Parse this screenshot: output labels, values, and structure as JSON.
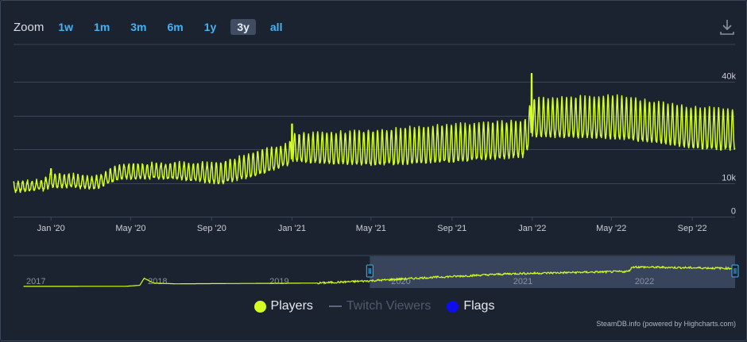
{
  "zoom": {
    "label": "Zoom",
    "buttons": [
      "1w",
      "1m",
      "3m",
      "6m",
      "1y",
      "3y",
      "all"
    ],
    "active": "3y"
  },
  "icons": {
    "download": "download-icon"
  },
  "colors": {
    "players": "#d3ff21",
    "twitch": "#5d6a7d",
    "flags": "#0d0df0",
    "background": "#1c2330",
    "grid": "#3a4556",
    "text": "#d9dde3",
    "navigator_mask": "#41506b"
  },
  "legend": [
    {
      "label": "Players",
      "kind": "dot",
      "color": "#d3ff21",
      "enabled": true
    },
    {
      "label": "Twitch Viewers",
      "kind": "line",
      "color": "#5d6a7d",
      "enabled": false
    },
    {
      "label": "Flags",
      "kind": "dot",
      "color": "#0d0df0",
      "enabled": true
    }
  ],
  "credits": "SteamDB.info (powered by Highcharts.com)",
  "chart_data": {
    "type": "line",
    "x_range": [
      "2019-11-05",
      "2022-11-05"
    ],
    "x_ticks": [
      {
        "date": "2020-01-01",
        "label": "Jan '20"
      },
      {
        "date": "2020-05-01",
        "label": "May '20"
      },
      {
        "date": "2020-09-01",
        "label": "Sep '20"
      },
      {
        "date": "2021-01-01",
        "label": "Jan '21"
      },
      {
        "date": "2021-05-01",
        "label": "May '21"
      },
      {
        "date": "2021-09-01",
        "label": "Sep '21"
      },
      {
        "date": "2022-01-01",
        "label": "Jan '22"
      },
      {
        "date": "2022-05-01",
        "label": "May '22"
      },
      {
        "date": "2022-09-01",
        "label": "Sep '22"
      }
    ],
    "y_axis": {
      "min": 0,
      "max": 40000,
      "ticks": [
        0,
        10000,
        20000,
        30000,
        40000
      ],
      "tick_labels": [
        "0",
        "10k",
        "",
        "",
        "40k"
      ],
      "position": "right"
    },
    "grid": true,
    "series": [
      {
        "name": "Players",
        "weekly_oscillation": true,
        "trend": [
          {
            "date": "2019-11-05",
            "low": 7500,
            "high": 10500
          },
          {
            "date": "2019-12-20",
            "low": 8000,
            "high": 11000
          },
          {
            "date": "2020-01-01",
            "low": 9000,
            "high": 13000
          },
          {
            "date": "2020-03-10",
            "low": 8500,
            "high": 12000
          },
          {
            "date": "2020-04-15",
            "low": 11500,
            "high": 15500
          },
          {
            "date": "2020-07-01",
            "low": 11500,
            "high": 16000
          },
          {
            "date": "2020-09-15",
            "low": 10000,
            "high": 16000
          },
          {
            "date": "2020-11-01",
            "low": 12000,
            "high": 19000
          },
          {
            "date": "2020-12-25",
            "low": 15500,
            "high": 21500
          },
          {
            "date": "2021-01-05",
            "low": 16500,
            "high": 24500
          },
          {
            "date": "2021-05-01",
            "low": 15500,
            "high": 25500
          },
          {
            "date": "2021-09-01",
            "low": 16500,
            "high": 27500
          },
          {
            "date": "2021-12-20",
            "low": 18000,
            "high": 28500
          },
          {
            "date": "2022-01-01",
            "low": 24000,
            "high": 35000
          },
          {
            "date": "2022-05-01",
            "low": 23500,
            "high": 36000
          },
          {
            "date": "2022-07-15",
            "low": 22000,
            "high": 34000
          },
          {
            "date": "2022-09-01",
            "low": 20500,
            "high": 32500
          },
          {
            "date": "2022-11-05",
            "low": 20000,
            "high": 32000
          }
        ],
        "spikes": [
          {
            "date": "2020-01-01",
            "value": 14200
          },
          {
            "date": "2021-01-01",
            "value": 27500
          },
          {
            "date": "2021-12-31",
            "value": 42500
          }
        ]
      }
    ],
    "navigator": {
      "x_range": [
        "2016-12-01",
        "2022-11-05"
      ],
      "labels": [
        {
          "date": "2017-01-01",
          "label": "2017"
        },
        {
          "date": "2018-01-01",
          "label": "2018"
        },
        {
          "date": "2019-01-01",
          "label": "2019"
        },
        {
          "date": "2020-01-01",
          "label": "2020"
        },
        {
          "date": "2021-01-01",
          "label": "2021"
        },
        {
          "date": "2022-01-01",
          "label": "2022"
        }
      ],
      "selected_range": [
        "2019-11-05",
        "2022-11-05"
      ],
      "series_trend": [
        {
          "date": "2016-12-01",
          "value": 100
        },
        {
          "date": "2017-11-01",
          "value": 200
        },
        {
          "date": "2017-12-15",
          "value": 1500
        },
        {
          "date": "2017-12-28",
          "value": 11000
        },
        {
          "date": "2018-01-25",
          "value": 4500
        },
        {
          "date": "2018-04-01",
          "value": 3500
        },
        {
          "date": "2019-06-01",
          "value": 4500
        },
        {
          "date": "2019-11-05",
          "value": 7500
        },
        {
          "date": "2020-04-15",
          "value": 11500
        },
        {
          "date": "2021-01-05",
          "value": 17000
        },
        {
          "date": "2021-12-20",
          "value": 20000
        },
        {
          "date": "2022-01-01",
          "value": 26000
        },
        {
          "date": "2022-11-05",
          "value": 24000
        }
      ]
    }
  }
}
